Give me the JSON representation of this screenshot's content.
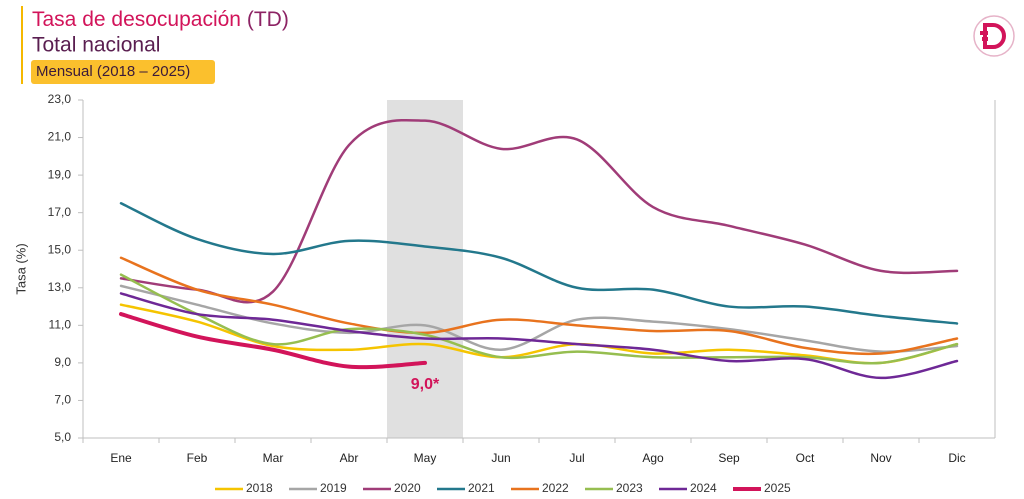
{
  "chart_data": {
    "type": "line",
    "title": "Tasa de desocupación",
    "title_note": "(TD)",
    "subtitle": "Total nacional",
    "badge": "Mensual (2018 – 2025)",
    "y_label": "Tasa (%)",
    "categories": [
      "Ene",
      "Feb",
      "Mar",
      "Abr",
      "May",
      "Jun",
      "Jul",
      "Ago",
      "Sep",
      "Oct",
      "Nov",
      "Dic"
    ],
    "highlight": 4,
    "ylim": [
      5,
      23
    ],
    "yticks": [
      {
        "value": 5,
        "label": "5,0"
      },
      {
        "value": 7,
        "label": "7,0"
      },
      {
        "value": 9,
        "label": "9,0"
      },
      {
        "value": 11,
        "label": "11,0"
      },
      {
        "value": 13,
        "label": "13,0"
      },
      {
        "value": 15,
        "label": "15,0"
      },
      {
        "value": 17,
        "label": "17,0"
      },
      {
        "value": 19,
        "label": "19,0"
      },
      {
        "value": 21,
        "label": "21,0"
      },
      {
        "value": 23,
        "label": "23,0"
      }
    ],
    "series": [
      {
        "name": "2018",
        "color": "#f5c400",
        "values": [
          12.1,
          11.2,
          9.9,
          9.7,
          10.0,
          9.3,
          10.0,
          9.5,
          9.7,
          9.4,
          9.0,
          10.0
        ]
      },
      {
        "name": "2019",
        "color": "#a6a6a6",
        "values": [
          13.1,
          12.1,
          11.1,
          10.6,
          11.0,
          9.7,
          11.3,
          11.2,
          10.8,
          10.2,
          9.6,
          9.9
        ]
      },
      {
        "name": "2020",
        "color": "#a03c78",
        "values": [
          13.5,
          12.9,
          12.8,
          20.6,
          21.9,
          20.4,
          20.9,
          17.3,
          16.3,
          15.3,
          13.9,
          13.9
        ]
      },
      {
        "name": "2021",
        "color": "#23788c",
        "values": [
          17.5,
          15.6,
          14.8,
          15.5,
          15.2,
          14.6,
          13.0,
          12.9,
          12.0,
          12.0,
          11.5,
          11.1
        ]
      },
      {
        "name": "2022",
        "color": "#e8731e",
        "values": [
          14.6,
          12.9,
          12.1,
          11.1,
          10.6,
          11.3,
          11.0,
          10.7,
          10.7,
          9.8,
          9.5,
          10.3
        ]
      },
      {
        "name": "2023",
        "color": "#96be50",
        "values": [
          13.7,
          11.6,
          10.0,
          10.8,
          10.5,
          9.3,
          9.6,
          9.3,
          9.3,
          9.3,
          9.0,
          10.0
        ]
      },
      {
        "name": "2024",
        "color": "#6e2896",
        "values": [
          12.7,
          11.6,
          11.3,
          10.7,
          10.3,
          10.3,
          10.0,
          9.7,
          9.1,
          9.2,
          8.2,
          9.1
        ]
      },
      {
        "name": "2025",
        "color": "#d2145a",
        "values": [
          11.6,
          10.4,
          9.7,
          8.8,
          9.0,
          null,
          null,
          null,
          null,
          null,
          null,
          null
        ],
        "value_labels": [
          null,
          null,
          null,
          null,
          "9,0*",
          null,
          null,
          null,
          null,
          null,
          null,
          null
        ]
      }
    ]
  }
}
